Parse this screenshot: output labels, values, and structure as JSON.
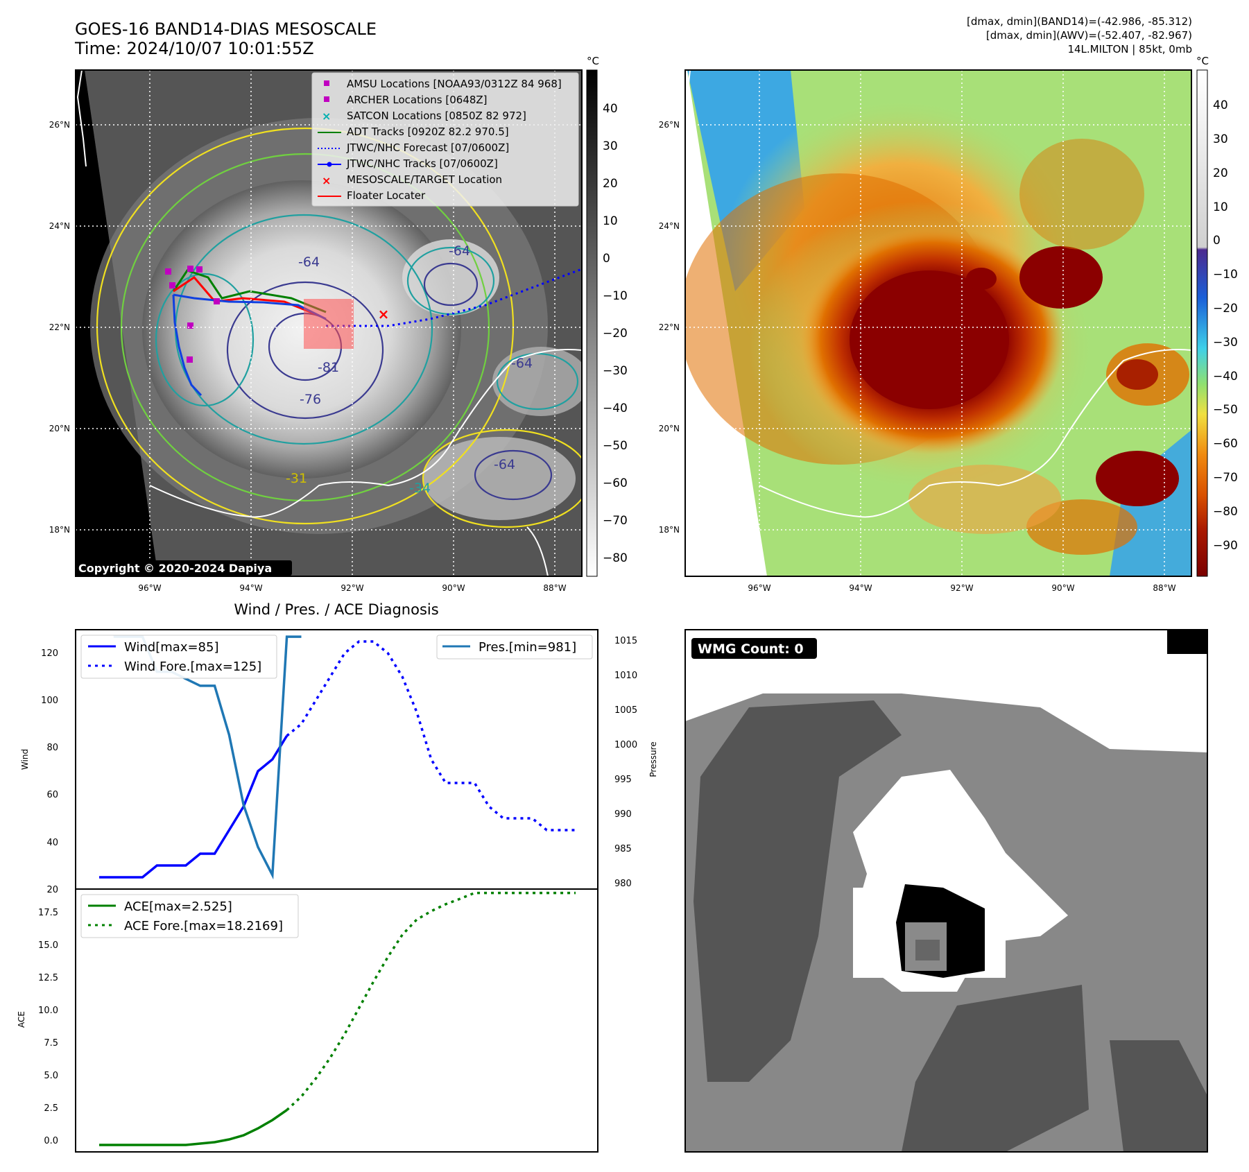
{
  "header": {
    "title_line1": "GOES-16 BAND14-DIAS MESOSCALE",
    "title_line2": "Time: 2024/10/07 10:01:55Z",
    "info_line1": "[dmax, dmin](BAND14)=(-42.986, -85.312)",
    "info_line2": "[dmax, dmin](AWV)=(-52.407, -82.967)",
    "info_line3": "14L.MILTON | 85kt, 0mb"
  },
  "map": {
    "lat_labels": [
      "26°N",
      "24°N",
      "22°N",
      "20°N",
      "18°N"
    ],
    "lon_labels": [
      "96°W",
      "94°W",
      "92°W",
      "90°W",
      "88°W"
    ],
    "copyright": "Copyright © 2020-2024 Dapiya",
    "legend": [
      {
        "label": "AMSU Locations [NOAA93/0312Z 84 968]",
        "marker": "square",
        "color": "#c000c0"
      },
      {
        "label": "ARCHER Locations [0648Z]",
        "marker": "square",
        "color": "#c000c0"
      },
      {
        "label": "SATCON Locations [0850Z 82 972]",
        "marker": "x",
        "color": "#00b0b0"
      },
      {
        "label": "ADT Tracks [0920Z 82.2 970.5]",
        "marker": "line",
        "color": "#008000"
      },
      {
        "label": "JTWC/NHC Forecast [07/0600Z]",
        "marker": "dotted",
        "color": "#0000ff"
      },
      {
        "label": "JTWC/NHC Tracks [07/0600Z]",
        "marker": "line-dot",
        "color": "#0000ff"
      },
      {
        "label": "MESOSCALE/TARGET Location",
        "marker": "x",
        "color": "#ff0000"
      },
      {
        "label": "Floater Locater",
        "marker": "line",
        "color": "#ff0000"
      }
    ],
    "contour_labels": [
      "-64",
      "-81",
      "-76",
      "-64",
      "-64",
      "-31",
      "-34",
      "-64"
    ],
    "colorbar_gray": {
      "unit": "°C",
      "ticks": [
        "40",
        "30",
        "20",
        "10",
        "0",
        "−10",
        "−20",
        "−30",
        "−40",
        "−50",
        "−60",
        "−70",
        "−80"
      ]
    },
    "colorbar_color": {
      "unit": "°C",
      "ticks": [
        "40",
        "30",
        "20",
        "10",
        "0",
        "−10",
        "−20",
        "−30",
        "−40",
        "−50",
        "−60",
        "−70",
        "−80",
        "−90"
      ]
    },
    "colors": {
      "eye_core": "#8b0000",
      "warm_band": "#e07000",
      "cool": "#80e070",
      "sea": "#2a9df4"
    }
  },
  "wind_panel": {
    "title": "Wind / Pres. / ACE Diagnosis",
    "ylabel_left": "Wind",
    "ylabel_right": "Pressure",
    "legend_left": [
      "Wind[max=85]",
      "Wind Fore.[max=125]"
    ],
    "legend_right": [
      "Pres.[min=981]"
    ],
    "wind_ticks": [
      "120",
      "100",
      "80",
      "60",
      "40",
      "20"
    ],
    "pres_ticks": [
      "1015",
      "1010",
      "1005",
      "1000",
      "995",
      "990",
      "985",
      "980"
    ]
  },
  "ace_panel": {
    "ylabel": "ACE",
    "legend": [
      "ACE[max=2.525]",
      "ACE Fore.[max=18.2169]"
    ],
    "ticks": [
      "17.5",
      "15.0",
      "12.5",
      "10.0",
      "7.5",
      "5.0",
      "2.5",
      "0.0"
    ]
  },
  "wmg_panel": {
    "badge": "WMG Count: 0"
  },
  "chart_data": [
    {
      "type": "line",
      "title": "Wind / Pres. / ACE Diagnosis",
      "ylabel": "Wind",
      "ylim": [
        20,
        130
      ],
      "series": [
        {
          "name": "Wind[max=85]",
          "x": [
            0,
            1,
            2,
            3,
            4,
            5,
            6,
            7,
            8,
            9,
            10,
            11,
            12,
            13
          ],
          "values": [
            25,
            25,
            25,
            25,
            30,
            30,
            30,
            35,
            35,
            45,
            55,
            70,
            75,
            85
          ]
        },
        {
          "name": "Wind Fore.[max=125]",
          "x": [
            13,
            14,
            15,
            16,
            17,
            18,
            19,
            20,
            21,
            22,
            23,
            24,
            25,
            26,
            27,
            28,
            29,
            30,
            31,
            32,
            33
          ],
          "values": [
            85,
            90,
            100,
            110,
            120,
            125,
            125,
            120,
            110,
            95,
            75,
            65,
            65,
            65,
            55,
            50,
            50,
            50,
            45,
            45,
            45
          ]
        }
      ]
    },
    {
      "type": "line",
      "ylabel": "Pressure",
      "ylim": [
        979,
        1016
      ],
      "series": [
        {
          "name": "Pres.[min=981]",
          "x": [
            1,
            2,
            3,
            4,
            5,
            6,
            7,
            8,
            9,
            10,
            11,
            12,
            13,
            14
          ],
          "values": [
            1015,
            1015,
            1015,
            1010,
            1010,
            1009,
            1008,
            1008,
            1001,
            991,
            985,
            981,
            1015,
            1015
          ]
        }
      ]
    },
    {
      "type": "line",
      "ylabel": "ACE",
      "ylim": [
        -0.5,
        18.5
      ],
      "series": [
        {
          "name": "ACE[max=2.525]",
          "x": [
            0,
            1,
            2,
            3,
            4,
            5,
            6,
            7,
            8,
            9,
            10,
            11,
            12,
            13
          ],
          "values": [
            0,
            0,
            0,
            0,
            0,
            0,
            0,
            0.1,
            0.2,
            0.4,
            0.7,
            1.2,
            1.8,
            2.525
          ]
        },
        {
          "name": "ACE Fore.[max=18.2169]",
          "x": [
            13,
            14,
            15,
            16,
            17,
            18,
            19,
            20,
            21,
            22,
            23,
            24,
            25,
            26,
            27,
            28,
            29,
            30,
            31,
            32,
            33
          ],
          "values": [
            2.525,
            3.5,
            4.8,
            6.3,
            8.0,
            9.9,
            11.8,
            13.6,
            15.2,
            16.3,
            16.9,
            17.4,
            17.8,
            18.2169,
            18.2169,
            18.2169,
            18.2169,
            18.2169,
            18.2169,
            18.2169,
            18.2169
          ]
        }
      ]
    }
  ]
}
